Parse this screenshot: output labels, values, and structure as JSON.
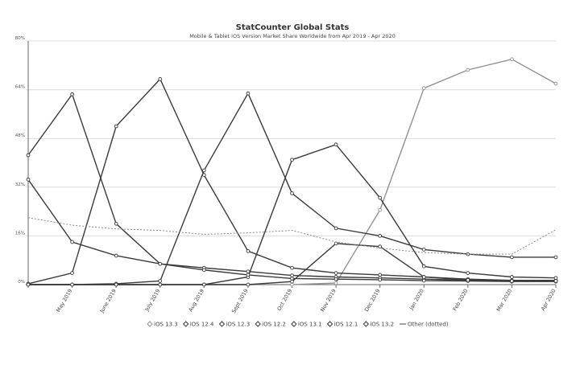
{
  "chart_data": {
    "type": "line",
    "title": "StatCounter Global Stats",
    "subtitle": "Mobile & Tablet iOS Version Market Share Worldwide from Apr 2019 - Apr 2020",
    "xlabel": "",
    "ylabel": "",
    "ylim": [
      0,
      80
    ],
    "yticks": [
      "0%",
      "16%",
      "32%",
      "48%",
      "64%",
      "80%"
    ],
    "grid": true,
    "legend_position": "bottom",
    "categories": [
      "Apr 2019",
      "May 2019",
      "June 2019",
      "July 2019",
      "Aug 2019",
      "Sept 2019",
      "Oct 2019",
      "Nov 2019",
      "Dec 2019",
      "Jan 2020",
      "Feb 2020",
      "Mar 2020",
      "Apr 2020"
    ],
    "tick_labels": [
      "May 2019",
      "June 2019",
      "July 2019",
      "Aug 2019",
      "Sept 2019",
      "Oct 2019",
      "Nov 2019",
      "Dec 2019",
      "Jan 2020",
      "Feb 2020",
      "Mar 2020",
      "Apr 2020"
    ],
    "series": [
      {
        "name": "iOS 13.3",
        "color": "#909090",
        "values": [
          0,
          0,
          0,
          0,
          0,
          0,
          0,
          0.5,
          24.5,
          64.5,
          70.5,
          74,
          66
        ],
        "marker": true,
        "dashed": false
      },
      {
        "name": "iOS 12.4",
        "color": "#3a3a3a",
        "values": [
          0.3,
          3.8,
          52,
          67.5,
          36,
          11,
          5.5,
          3.8,
          3.2,
          2.5,
          1.8,
          1.4,
          1.4
        ],
        "marker": true,
        "dashed": false
      },
      {
        "name": "iOS 12.3",
        "color": "#3a3a3a",
        "values": [
          0,
          0,
          0.3,
          1.2,
          37.5,
          62.8,
          30,
          18.5,
          16,
          11.5,
          10,
          9,
          9
        ],
        "marker": true,
        "dashed": false
      },
      {
        "name": "iOS 12.2",
        "color": "#3a3a3a",
        "values": [
          42.5,
          62.5,
          20,
          6.8,
          5.5,
          4.3,
          3,
          2.5,
          2.2,
          1.8,
          1.5,
          1.3,
          1.2
        ],
        "marker": true,
        "dashed": false
      },
      {
        "name": "iOS 13.1",
        "color": "#3a3a3a",
        "values": [
          0,
          0,
          0,
          0,
          0,
          2.5,
          41,
          46,
          28.5,
          6,
          3.8,
          2.5,
          2.2
        ],
        "marker": true,
        "dashed": false
      },
      {
        "name": "iOS 12.1",
        "color": "#3a3a3a",
        "values": [
          34.5,
          14,
          9.5,
          6.8,
          4.8,
          3.2,
          2,
          1.8,
          1.6,
          1.3,
          1.2,
          1,
          1
        ],
        "marker": true,
        "dashed": false
      },
      {
        "name": "iOS 13.2",
        "color": "#3a3a3a",
        "values": [
          0,
          0,
          0,
          0,
          0,
          0,
          1,
          13.5,
          12.5,
          2.5,
          1.5,
          1.2,
          1.2
        ],
        "marker": true,
        "dashed": false
      },
      {
        "name": "Other (dotted)",
        "color": "#8a8a8a",
        "values": [
          22,
          19.5,
          18.3,
          17.8,
          16.5,
          17,
          17.8,
          14,
          12,
          10.5,
          10,
          10,
          18
        ],
        "marker": false,
        "dashed": true
      }
    ]
  }
}
